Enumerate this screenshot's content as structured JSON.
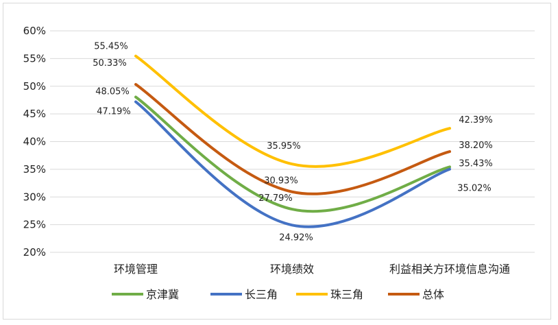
{
  "chart_data": {
    "type": "line",
    "smooth": true,
    "categories": [
      "环境管理",
      "环境绩效",
      "利益相关方环境信息沟通"
    ],
    "ylim": [
      20,
      60
    ],
    "ytick_step": 5,
    "ytick_format": "percent",
    "grid": true,
    "legend_position": "bottom",
    "series": [
      {
        "name": "京津冀",
        "color": "#70ad47",
        "values": [
          48.05,
          27.79,
          35.43
        ],
        "labels": [
          "48.05%",
          "27.79%",
          "35.43%"
        ]
      },
      {
        "name": "长三角",
        "color": "#4472c4",
        "values": [
          47.19,
          24.92,
          35.02
        ],
        "labels": [
          "47.19%",
          "24.92%",
          "35.02%"
        ]
      },
      {
        "name": "珠三角",
        "color": "#ffc000",
        "values": [
          55.45,
          35.95,
          42.39
        ],
        "labels": [
          "55.45%",
          "35.95%",
          "42.39%"
        ]
      },
      {
        "name": "总体",
        "color": "#c55a11",
        "values": [
          50.33,
          30.93,
          38.2
        ],
        "labels": [
          "50.33%",
          "30.93%",
          "38.20%"
        ]
      }
    ]
  }
}
